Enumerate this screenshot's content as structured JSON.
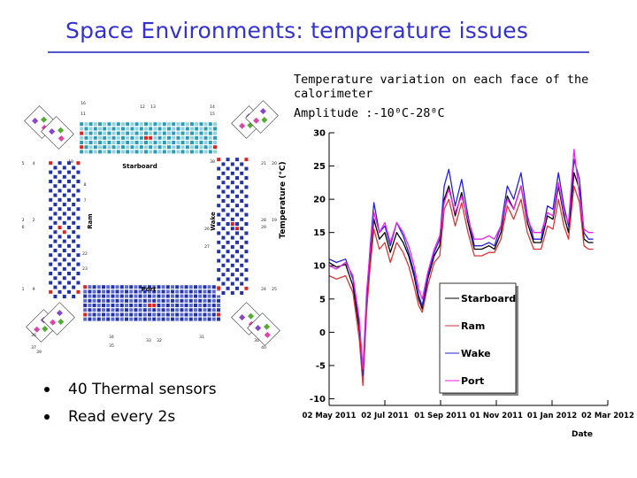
{
  "slide": {
    "title": "Space Environments: temperature issues",
    "caption_line1": "Temperature variation on each face of the calorimeter",
    "caption_line2": "Amplitude :-10⁰C-28⁰C",
    "bullets": [
      "40 Thermal  sensors",
      "Read every 2s"
    ]
  },
  "diagram": {
    "faces": [
      "Starboard",
      "Ram",
      "Wake",
      "Port"
    ],
    "sensor_numbers_top": [
      "16",
      "12",
      "13",
      "14",
      "11",
      "15",
      "18",
      "38"
    ],
    "sensor_numbers_left": [
      "5",
      "4",
      "3",
      "2",
      "1",
      "9",
      "6",
      "8",
      "7",
      "22",
      "23"
    ],
    "sensor_numbers_right": [
      "21",
      "20",
      "19",
      "24",
      "25",
      "28",
      "29",
      "26",
      "27"
    ],
    "sensor_numbers_bottom": [
      "34",
      "33",
      "32",
      "31",
      "35",
      "36",
      "37",
      "39",
      "40",
      "30"
    ],
    "colors": {
      "grid_cell": "#2233aa",
      "grid_cell_alt": "#5a6bcc",
      "teal_cell": "#2a9bb5",
      "sensor": "#dd2222"
    }
  },
  "chart_data": {
    "type": "line",
    "title": "",
    "xlabel": "Date",
    "ylabel": "Temperature (°C)",
    "ylim": [
      -11,
      30
    ],
    "yticks": [
      -10,
      -5,
      0,
      5,
      10,
      15,
      20,
      25,
      30
    ],
    "xtick_labels": [
      "02 May 2011",
      "02 Jul 2011",
      "01 Sep 2011",
      "01 Nov 2011",
      "01 Jan 2012",
      "02 Mar 2012"
    ],
    "xtick_dates": [
      "2011-05-02",
      "2011-07-02",
      "2011-09-01",
      "2011-11-01",
      "2012-01-01",
      "2012-03-02"
    ],
    "legend_position": "bottom-center",
    "series": [
      {
        "name": "Starboard",
        "color": "#000000",
        "x": [
          "2011-05-02",
          "2011-05-10",
          "2011-05-20",
          "2011-05-28",
          "2011-06-04",
          "2011-06-08",
          "2011-06-12",
          "2011-06-16",
          "2011-06-20",
          "2011-06-26",
          "2011-07-02",
          "2011-07-08",
          "2011-07-15",
          "2011-07-22",
          "2011-07-28",
          "2011-08-03",
          "2011-08-08",
          "2011-08-12",
          "2011-08-18",
          "2011-08-25",
          "2011-08-31",
          "2011-09-05",
          "2011-09-10",
          "2011-09-17",
          "2011-09-24",
          "2011-10-01",
          "2011-10-08",
          "2011-10-16",
          "2011-10-24",
          "2011-10-30",
          "2011-11-06",
          "2011-11-13",
          "2011-11-20",
          "2011-11-28",
          "2011-12-05",
          "2011-12-12",
          "2011-12-20",
          "2011-12-27",
          "2012-01-02",
          "2012-01-08",
          "2012-01-14",
          "2012-01-19",
          "2012-01-25",
          "2012-01-31",
          "2012-02-05",
          "2012-02-10",
          "2012-02-15"
        ],
        "values": [
          10.5,
          9.8,
          10.2,
          7.0,
          0.5,
          -7.0,
          4.0,
          11.5,
          17.0,
          14.0,
          15.0,
          12.0,
          15.0,
          13.5,
          11.5,
          8.5,
          5.0,
          3.5,
          8.0,
          11.5,
          13.0,
          20.0,
          22.0,
          17.5,
          21.0,
          16.5,
          12.5,
          12.5,
          13.0,
          12.5,
          15.0,
          20.5,
          18.5,
          22.0,
          16.5,
          13.5,
          13.5,
          17.5,
          17.0,
          22.0,
          17.5,
          15.0,
          24.0,
          21.5,
          14.0,
          13.5,
          13.5
        ]
      },
      {
        "name": "Ram",
        "color": "#dd3333",
        "x": [
          "2011-05-02",
          "2011-05-10",
          "2011-05-20",
          "2011-05-28",
          "2011-06-04",
          "2011-06-08",
          "2011-06-12",
          "2011-06-16",
          "2011-06-20",
          "2011-06-26",
          "2011-07-02",
          "2011-07-08",
          "2011-07-15",
          "2011-07-22",
          "2011-07-28",
          "2011-08-03",
          "2011-08-08",
          "2011-08-12",
          "2011-08-18",
          "2011-08-25",
          "2011-08-31",
          "2011-09-05",
          "2011-09-10",
          "2011-09-17",
          "2011-09-24",
          "2011-10-01",
          "2011-10-08",
          "2011-10-16",
          "2011-10-24",
          "2011-10-30",
          "2011-11-06",
          "2011-11-13",
          "2011-11-20",
          "2011-11-28",
          "2011-12-05",
          "2011-12-12",
          "2011-12-20",
          "2011-12-27",
          "2012-01-02",
          "2012-01-08",
          "2012-01-14",
          "2012-01-19",
          "2012-01-25",
          "2012-01-31",
          "2012-02-05",
          "2012-02-10",
          "2012-02-15"
        ],
        "values": [
          8.5,
          8.0,
          8.5,
          6.0,
          -1.0,
          -8.0,
          3.0,
          10.0,
          15.5,
          12.5,
          13.5,
          10.5,
          13.5,
          12.0,
          10.0,
          7.0,
          4.0,
          3.0,
          7.0,
          10.5,
          11.5,
          18.5,
          20.0,
          16.0,
          19.5,
          15.0,
          11.5,
          11.5,
          12.0,
          12.0,
          14.0,
          19.0,
          17.0,
          20.0,
          15.0,
          12.5,
          12.5,
          16.0,
          15.5,
          20.0,
          16.0,
          14.0,
          22.0,
          19.5,
          13.0,
          12.5,
          12.5
        ]
      },
      {
        "name": "Wake",
        "color": "#2222dd",
        "x": [
          "2011-05-02",
          "2011-05-10",
          "2011-05-20",
          "2011-05-28",
          "2011-06-04",
          "2011-06-08",
          "2011-06-12",
          "2011-06-16",
          "2011-06-20",
          "2011-06-26",
          "2011-07-02",
          "2011-07-08",
          "2011-07-15",
          "2011-07-22",
          "2011-07-28",
          "2011-08-03",
          "2011-08-08",
          "2011-08-12",
          "2011-08-18",
          "2011-08-25",
          "2011-08-31",
          "2011-09-05",
          "2011-09-10",
          "2011-09-17",
          "2011-09-24",
          "2011-10-01",
          "2011-10-08",
          "2011-10-16",
          "2011-10-24",
          "2011-10-30",
          "2011-11-06",
          "2011-11-13",
          "2011-11-20",
          "2011-11-28",
          "2011-12-05",
          "2011-12-12",
          "2011-12-20",
          "2011-12-27",
          "2012-01-02",
          "2012-01-08",
          "2012-01-14",
          "2012-01-19",
          "2012-01-25",
          "2012-01-31",
          "2012-02-05",
          "2012-02-10",
          "2012-02-15"
        ],
        "values": [
          11.0,
          10.5,
          11.0,
          8.0,
          1.5,
          -6.5,
          5.0,
          13.0,
          19.5,
          15.0,
          16.0,
          13.0,
          16.5,
          14.5,
          12.0,
          9.0,
          5.5,
          4.0,
          8.5,
          12.0,
          14.0,
          22.0,
          24.5,
          19.0,
          23.0,
          17.5,
          13.0,
          13.0,
          13.5,
          13.0,
          16.0,
          22.0,
          20.0,
          24.0,
          17.5,
          14.0,
          14.0,
          19.0,
          18.5,
          24.0,
          19.0,
          16.0,
          26.0,
          23.0,
          15.0,
          14.0,
          14.0
        ]
      },
      {
        "name": "Port",
        "color": "#ee22ee",
        "x": [
          "2011-05-02",
          "2011-05-10",
          "2011-05-20",
          "2011-05-28",
          "2011-06-04",
          "2011-06-08",
          "2011-06-12",
          "2011-06-16",
          "2011-06-20",
          "2011-06-26",
          "2011-07-02",
          "2011-07-08",
          "2011-07-15",
          "2011-07-22",
          "2011-07-28",
          "2011-08-03",
          "2011-08-08",
          "2011-08-12",
          "2011-08-18",
          "2011-08-25",
          "2011-08-31",
          "2011-09-05",
          "2011-09-10",
          "2011-09-17",
          "2011-09-24",
          "2011-10-01",
          "2011-10-08",
          "2011-10-16",
          "2011-10-24",
          "2011-10-30",
          "2011-11-06",
          "2011-11-13",
          "2011-11-20",
          "2011-11-28",
          "2011-12-05",
          "2011-12-12",
          "2011-12-20",
          "2011-12-27",
          "2012-01-02",
          "2012-01-08",
          "2012-01-14",
          "2012-01-19",
          "2012-01-25",
          "2012-01-31",
          "2012-02-05",
          "2012-02-10",
          "2012-02-15"
        ],
        "values": [
          10.0,
          9.5,
          10.5,
          8.5,
          2.0,
          -5.5,
          6.0,
          12.5,
          18.0,
          15.0,
          16.5,
          13.5,
          16.5,
          15.0,
          13.0,
          10.0,
          6.5,
          5.0,
          9.0,
          12.5,
          14.5,
          19.5,
          21.5,
          18.0,
          20.5,
          17.0,
          14.0,
          14.0,
          14.5,
          14.0,
          16.0,
          20.0,
          18.5,
          22.0,
          17.0,
          15.0,
          15.0,
          18.0,
          17.5,
          22.5,
          18.0,
          16.5,
          27.5,
          20.5,
          15.5,
          15.0,
          15.0
        ]
      }
    ]
  }
}
